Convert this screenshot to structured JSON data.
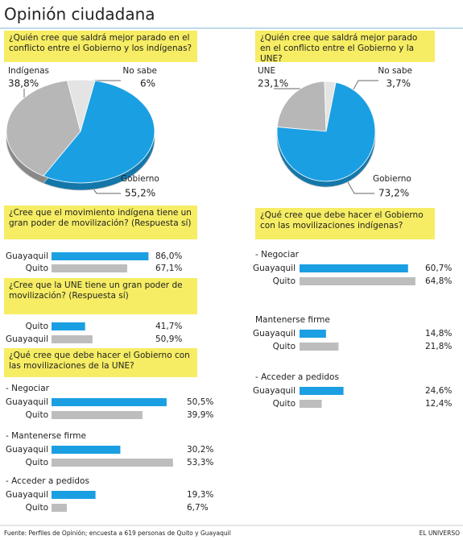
{
  "title": "Opinión ciudadana",
  "source": "Fuente: Perfiles de Opinión; encuesta a 619 personas de Quito y Guayaquil",
  "brand": "EL UNIVERSO",
  "chart_data": [
    {
      "type": "pie",
      "title": "¿Quién cree que saldrá mejor parado en el conflicto entre el Gobierno y los indígenas?",
      "categories": [
        "Indígenas",
        "No sabe",
        "Gobierno"
      ],
      "values": [
        38.8,
        6,
        55.2
      ],
      "value_labels": [
        "38,8%",
        "6%",
        "55,2%"
      ],
      "colors": [
        "#b7b7b7",
        "#e4e4e4",
        "#1a9fe3"
      ]
    },
    {
      "type": "pie",
      "title": "¿Quién cree que saldrá mejor parado en el conflicto entre el Gobierno y la UNE?",
      "categories": [
        "UNE",
        "No sabe",
        "Gobierno"
      ],
      "values": [
        23.1,
        3.7,
        73.2
      ],
      "value_labels": [
        "23,1%",
        "3,7%",
        "73,2%"
      ],
      "colors": [
        "#b7b7b7",
        "#e4e4e4",
        "#1a9fe3"
      ]
    },
    {
      "type": "bar",
      "title": "¿Cree que el movimiento indígena tiene un gran poder de movilización? (Respuesta sí)",
      "categories": [
        "Guayaquil",
        "Quito"
      ],
      "values": [
        86.0,
        67.1
      ],
      "value_labels": [
        "86,0%",
        "67,1%"
      ],
      "colors": [
        "#1a9fe3",
        "#bdbdbd"
      ]
    },
    {
      "type": "bar",
      "title": "¿Cree que la UNE tiene un gran poder de movilización? (Respuesta sí)",
      "categories": [
        "Quito",
        "Guayaquil"
      ],
      "values": [
        41.7,
        50.9
      ],
      "value_labels": [
        "41,7%",
        "50,9%"
      ],
      "colors": [
        "#1a9fe3",
        "#bdbdbd"
      ]
    },
    {
      "type": "grouped-bar",
      "title": "¿Qué cree que debe hacer el Gobierno con las movilizaciones de la UNE?",
      "categories": [
        "- Negociar",
        "- Mantenerse firme",
        "- Acceder a pedidos"
      ],
      "series": [
        {
          "name": "Guayaquil",
          "color": "#1a9fe3",
          "values": [
            50.5,
            30.2,
            19.3
          ],
          "value_labels": [
            "50,5%",
            "30,2%",
            "19,3%"
          ]
        },
        {
          "name": "Quito",
          "color": "#bdbdbd",
          "values": [
            39.9,
            53.3,
            6.7
          ],
          "value_labels": [
            "39,9%",
            "53,3%",
            "6,7%"
          ]
        }
      ]
    },
    {
      "type": "grouped-bar",
      "title": "¿Qué cree que debe hacer el Gobierno con las movilizaciones indígenas?",
      "categories": [
        "- Negociar",
        "Mantenerse firme",
        "- Acceder a pedidos"
      ],
      "series": [
        {
          "name": "Guayaquil",
          "color": "#1a9fe3",
          "values": [
            60.7,
            14.8,
            24.6
          ],
          "value_labels": [
            "60,7%",
            "14,8%",
            "24,6%"
          ]
        },
        {
          "name": "Quito",
          "color": "#bdbdbd",
          "values": [
            64.8,
            21.8,
            12.4
          ],
          "value_labels": [
            "64,8%",
            "21,8%",
            "12,4%"
          ]
        }
      ]
    }
  ]
}
